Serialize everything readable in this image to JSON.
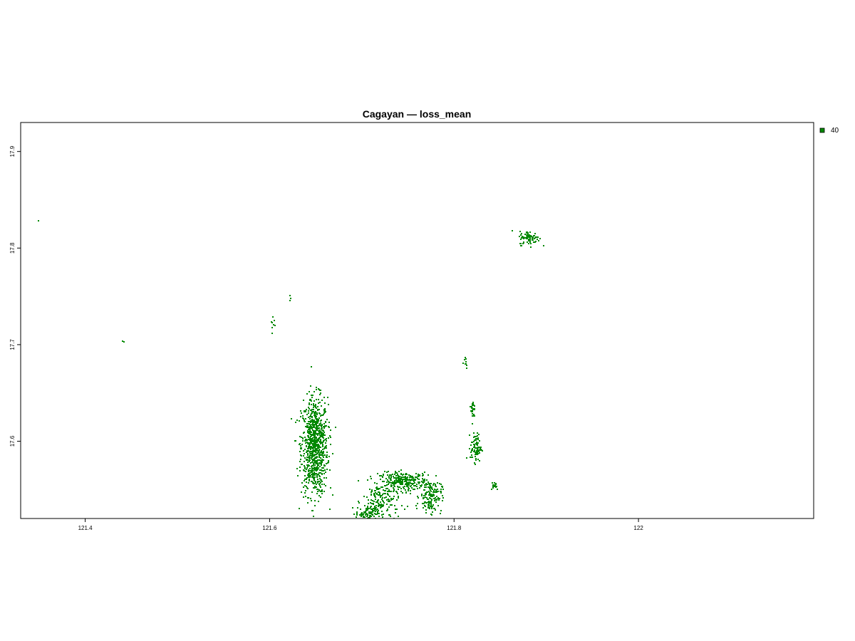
{
  "title": "Cagayan — loss_mean",
  "legend": {
    "placement": "top-right",
    "items": [
      {
        "label": "40",
        "color": "#008800"
      }
    ]
  },
  "map": {
    "xlim": [
      121.33,
      122.19
    ],
    "ylim": [
      17.52,
      17.93
    ],
    "x_ticks": [
      {
        "value": 121.4,
        "label": "121.4"
      },
      {
        "value": 121.6,
        "label": "121.6"
      },
      {
        "value": 121.8,
        "label": "121.8"
      },
      {
        "value": 122.0,
        "label": "122"
      }
    ],
    "y_ticks": [
      {
        "value": 17.6,
        "label": "17.6"
      },
      {
        "value": 17.7,
        "label": "17.7"
      },
      {
        "value": 17.8,
        "label": "17.8"
      },
      {
        "value": 17.9,
        "label": "17.9"
      }
    ],
    "fill_color": "#008800",
    "clusters": [
      {
        "x": 121.648,
        "y": 17.595,
        "rx": 0.012,
        "ry": 0.042,
        "n": 900
      },
      {
        "x": 121.745,
        "y": 17.559,
        "rx": 0.022,
        "ry": 0.008,
        "n": 280
      },
      {
        "x": 121.72,
        "y": 17.538,
        "rx": 0.016,
        "ry": 0.018,
        "n": 160
      },
      {
        "x": 121.774,
        "y": 17.544,
        "rx": 0.01,
        "ry": 0.014,
        "n": 160
      },
      {
        "x": 121.705,
        "y": 17.526,
        "rx": 0.01,
        "ry": 0.006,
        "n": 90
      },
      {
        "x": 121.823,
        "y": 17.594,
        "rx": 0.005,
        "ry": 0.012,
        "n": 90
      },
      {
        "x": 121.82,
        "y": 17.633,
        "rx": 0.002,
        "ry": 0.01,
        "n": 25
      },
      {
        "x": 121.811,
        "y": 17.683,
        "rx": 0.003,
        "ry": 0.006,
        "n": 12
      },
      {
        "x": 121.843,
        "y": 17.555,
        "rx": 0.004,
        "ry": 0.004,
        "n": 20
      },
      {
        "x": 121.881,
        "y": 17.811,
        "rx": 0.009,
        "ry": 0.006,
        "n": 90
      },
      {
        "x": 121.603,
        "y": 17.722,
        "rx": 0.002,
        "ry": 0.01,
        "n": 8
      },
      {
        "x": 121.622,
        "y": 17.748,
        "rx": 0.001,
        "ry": 0.004,
        "n": 3
      },
      {
        "x": 121.44,
        "y": 17.704,
        "rx": 0.001,
        "ry": 0.001,
        "n": 3
      },
      {
        "x": 121.348,
        "y": 17.829,
        "rx": 0.0005,
        "ry": 0.0005,
        "n": 1
      }
    ]
  }
}
